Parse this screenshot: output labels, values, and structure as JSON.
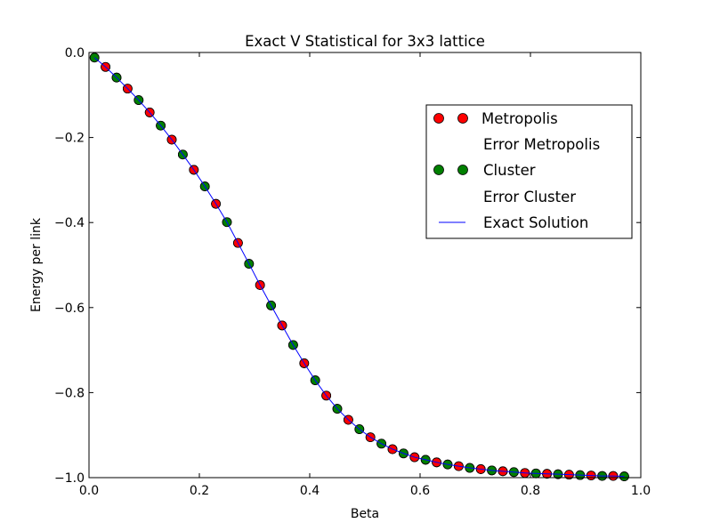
{
  "chart_data": {
    "type": "scatter",
    "title": "Exact V Statistical for 3x3 lattice",
    "xlabel": "Beta",
    "ylabel": "Energy per link",
    "xlim": [
      0.0,
      1.0
    ],
    "ylim": [
      -1.0,
      0.0
    ],
    "xticks": [
      "0.0",
      "0.2",
      "0.4",
      "0.6",
      "0.8",
      "1.0"
    ],
    "yticks": [
      "0.0",
      "−0.2",
      "−0.4",
      "−0.6",
      "−0.8",
      "−1.0"
    ],
    "grid": false,
    "legend_position": "upper right",
    "colors": {
      "metropolis": "#ff0000",
      "cluster": "#008000",
      "exact": "#0000ff"
    },
    "series": [
      {
        "name": "Metropolis",
        "marker": "circle",
        "color": "#ff0000",
        "x": [
          0.01,
          0.03,
          0.05,
          0.07,
          0.09,
          0.11,
          0.13,
          0.15,
          0.17,
          0.19,
          0.21,
          0.23,
          0.25,
          0.27,
          0.29,
          0.31,
          0.33,
          0.35,
          0.37,
          0.39,
          0.41,
          0.43,
          0.45,
          0.47,
          0.49,
          0.51,
          0.53,
          0.55,
          0.57,
          0.59,
          0.61,
          0.63,
          0.65,
          0.67,
          0.69,
          0.71,
          0.73,
          0.75,
          0.77,
          0.79,
          0.81,
          0.83,
          0.85,
          0.87,
          0.89,
          0.91,
          0.93,
          0.95,
          0.97
        ],
        "y": [
          -0.012,
          -0.034,
          -0.059,
          -0.085,
          -0.112,
          -0.141,
          -0.172,
          -0.205,
          -0.24,
          -0.276,
          -0.315,
          -0.356,
          -0.399,
          -0.448,
          -0.497,
          -0.547,
          -0.595,
          -0.642,
          -0.688,
          -0.731,
          -0.771,
          -0.807,
          -0.838,
          -0.864,
          -0.886,
          -0.905,
          -0.92,
          -0.933,
          -0.943,
          -0.952,
          -0.958,
          -0.964,
          -0.969,
          -0.973,
          -0.977,
          -0.98,
          -0.983,
          -0.985,
          -0.987,
          -0.989,
          -0.99,
          -0.991,
          -0.992,
          -0.993,
          -0.994,
          -0.995,
          -0.996,
          -0.996,
          -0.997
        ]
      },
      {
        "name": "Error Metropolis"
      },
      {
        "name": "Cluster",
        "marker": "circle",
        "color": "#008000",
        "x": [
          0.01,
          0.03,
          0.05,
          0.07,
          0.09,
          0.11,
          0.13,
          0.15,
          0.17,
          0.19,
          0.21,
          0.23,
          0.25,
          0.27,
          0.29,
          0.31,
          0.33,
          0.35,
          0.37,
          0.39,
          0.41,
          0.43,
          0.45,
          0.47,
          0.49,
          0.51,
          0.53,
          0.55,
          0.57,
          0.59,
          0.61,
          0.63,
          0.65,
          0.67,
          0.69,
          0.71,
          0.73,
          0.75,
          0.77,
          0.79,
          0.81,
          0.83,
          0.85,
          0.87,
          0.89,
          0.91,
          0.93,
          0.95,
          0.97
        ],
        "y": [
          -0.012,
          -0.034,
          -0.059,
          -0.085,
          -0.112,
          -0.141,
          -0.172,
          -0.205,
          -0.24,
          -0.276,
          -0.315,
          -0.356,
          -0.399,
          -0.448,
          -0.497,
          -0.547,
          -0.595,
          -0.642,
          -0.688,
          -0.731,
          -0.771,
          -0.807,
          -0.838,
          -0.864,
          -0.886,
          -0.905,
          -0.92,
          -0.933,
          -0.943,
          -0.952,
          -0.958,
          -0.964,
          -0.969,
          -0.973,
          -0.977,
          -0.98,
          -0.983,
          -0.985,
          -0.987,
          -0.989,
          -0.99,
          -0.991,
          -0.992,
          -0.993,
          -0.994,
          -0.995,
          -0.996,
          -0.996,
          -0.997
        ]
      },
      {
        "name": "Error Cluster"
      },
      {
        "name": "Exact Solution",
        "line": true,
        "color": "#0000ff",
        "x": [
          0.01,
          0.03,
          0.05,
          0.07,
          0.09,
          0.11,
          0.13,
          0.15,
          0.17,
          0.19,
          0.21,
          0.23,
          0.25,
          0.27,
          0.29,
          0.31,
          0.33,
          0.35,
          0.37,
          0.39,
          0.41,
          0.43,
          0.45,
          0.47,
          0.49,
          0.51,
          0.53,
          0.55,
          0.57,
          0.59,
          0.61,
          0.63,
          0.65,
          0.67,
          0.69,
          0.71,
          0.73,
          0.75,
          0.77,
          0.79,
          0.81,
          0.83,
          0.85,
          0.87,
          0.89,
          0.91,
          0.93,
          0.95,
          0.97
        ],
        "y": [
          -0.012,
          -0.034,
          -0.059,
          -0.085,
          -0.112,
          -0.141,
          -0.172,
          -0.205,
          -0.24,
          -0.276,
          -0.315,
          -0.356,
          -0.399,
          -0.448,
          -0.497,
          -0.547,
          -0.595,
          -0.642,
          -0.688,
          -0.731,
          -0.771,
          -0.807,
          -0.838,
          -0.864,
          -0.886,
          -0.905,
          -0.92,
          -0.933,
          -0.943,
          -0.952,
          -0.958,
          -0.964,
          -0.969,
          -0.973,
          -0.977,
          -0.98,
          -0.983,
          -0.985,
          -0.987,
          -0.989,
          -0.99,
          -0.991,
          -0.992,
          -0.993,
          -0.994,
          -0.995,
          -0.996,
          -0.996,
          -0.997
        ]
      }
    ]
  }
}
